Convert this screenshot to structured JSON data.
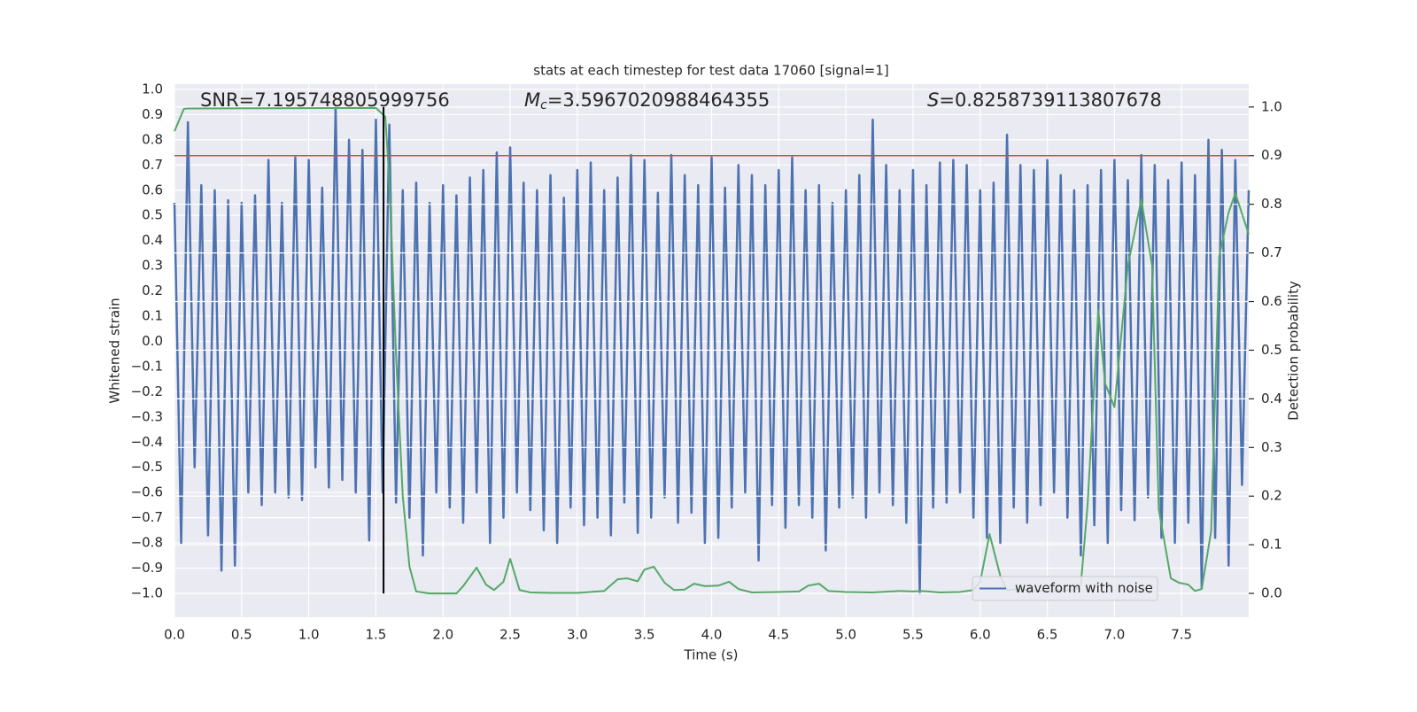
{
  "chart_data": {
    "type": "line",
    "title": "stats at each timestep for test data 17060 [signal=1]",
    "xlabel": "Time (s)",
    "ylabel": "Whitened strain",
    "y2label": "Detection probability",
    "xlim": [
      0,
      8
    ],
    "ylim": [
      -1.095,
      1.021
    ],
    "y2lim": [
      -0.049,
      1.047
    ],
    "xticks": [
      {
        "value": 0,
        "label": "0.0"
      },
      0.5,
      {
        "value": 1,
        "label": "1.0"
      },
      1.5,
      {
        "value": 2,
        "label": "2.0"
      },
      2.5,
      {
        "value": 3,
        "label": "3.0"
      },
      3.5,
      {
        "value": 4,
        "label": "4.0"
      },
      4.5,
      {
        "value": 5,
        "label": "5.0"
      },
      5.5,
      {
        "value": 6,
        "label": "6.0"
      },
      6.5,
      {
        "value": 7,
        "label": "7.0"
      },
      7.5
    ],
    "yticks": [
      {
        "value": -1,
        "label": "−1.0"
      },
      {
        "value": -0.9,
        "label": "−0.9"
      },
      {
        "value": -0.8,
        "label": "−0.8"
      },
      {
        "value": -0.7,
        "label": "−0.7"
      },
      {
        "value": -0.6,
        "label": "−0.6"
      },
      {
        "value": -0.5,
        "label": "−0.5"
      },
      {
        "value": -0.4,
        "label": "−0.4"
      },
      {
        "value": -0.3,
        "label": "−0.3"
      },
      {
        "value": -0.2,
        "label": "−0.2"
      },
      {
        "value": -0.1,
        "label": "−0.1"
      },
      {
        "value": 0,
        "label": "0.0"
      },
      0.1,
      0.2,
      0.3,
      0.4,
      0.5,
      0.6,
      0.7,
      0.8,
      0.9,
      {
        "value": 1,
        "label": "1.0"
      }
    ],
    "y2ticks": [
      {
        "value": 0,
        "label": "0.0"
      },
      0.1,
      0.2,
      0.3,
      0.4,
      0.5,
      0.6,
      0.7,
      0.8,
      0.9,
      {
        "value": 1,
        "label": "1.0"
      }
    ],
    "grid": true,
    "legend_loc": "lower right",
    "annotations": [
      {
        "text": "SNR=7.195748805999756"
      },
      {
        "symbol": "M",
        "subscript": "c",
        "text": "=3.5967020988464355"
      },
      {
        "symbol": "S",
        "text": "=0.8258739113807678"
      }
    ],
    "hline": {
      "value": 0.9,
      "axis": "y2",
      "color": "#c44e52"
    },
    "vline": {
      "x": 1.557,
      "ymin": 0,
      "ymax": 1,
      "axis": "y2",
      "color": "#000000"
    },
    "series": [
      {
        "name": "waveform with noise",
        "color": "#4c72b0",
        "axis": "y",
        "x": [
          0,
          0.05,
          0.1,
          0.15,
          0.2,
          0.25,
          0.3,
          0.35,
          0.4,
          0.45,
          0.5,
          0.55,
          0.6,
          0.65,
          0.7,
          0.75,
          0.8,
          0.85,
          0.9,
          0.95,
          1,
          1.05,
          1.1,
          1.15,
          1.2,
          1.25,
          1.3,
          1.35,
          1.4,
          1.45,
          1.5,
          1.55,
          1.6,
          1.65,
          1.7,
          1.75,
          1.8,
          1.85,
          1.9,
          1.95,
          2,
          2.05,
          2.1,
          2.15,
          2.2,
          2.25,
          2.3,
          2.35,
          2.4,
          2.45,
          2.5,
          2.55,
          2.6,
          2.65,
          2.7,
          2.75,
          2.8,
          2.85,
          2.9,
          2.95,
          3,
          3.05,
          3.1,
          3.15,
          3.2,
          3.25,
          3.3,
          3.35,
          3.4,
          3.45,
          3.5,
          3.55,
          3.6,
          3.65,
          3.7,
          3.75,
          3.8,
          3.85,
          3.9,
          3.95,
          4,
          4.05,
          4.1,
          4.15,
          4.2,
          4.25,
          4.3,
          4.35,
          4.4,
          4.45,
          4.5,
          4.55,
          4.6,
          4.65,
          4.7,
          4.75,
          4.8,
          4.85,
          4.9,
          4.95,
          5,
          5.05,
          5.1,
          5.15,
          5.2,
          5.25,
          5.3,
          5.35,
          5.4,
          5.45,
          5.5,
          5.55,
          5.6,
          5.65,
          5.7,
          5.75,
          5.8,
          5.85,
          5.9,
          5.95,
          6,
          6.05,
          6.1,
          6.15,
          6.2,
          6.25,
          6.3,
          6.35,
          6.4,
          6.45,
          6.5,
          6.55,
          6.6,
          6.65,
          6.7,
          6.75,
          6.8,
          6.85,
          6.9,
          6.95,
          7,
          7.05,
          7.1,
          7.15,
          7.2,
          7.25,
          7.3,
          7.35,
          7.4,
          7.45,
          7.5,
          7.55,
          7.6,
          7.65,
          7.7,
          7.75,
          7.8,
          7.85,
          7.9,
          7.95,
          8
        ],
        "values": [
          0.55,
          -0.8,
          0.87,
          -0.5,
          0.62,
          -0.77,
          0.6,
          -0.91,
          0.56,
          -0.89,
          0.55,
          -0.6,
          0.58,
          -0.65,
          0.72,
          -0.6,
          0.55,
          -0.62,
          0.73,
          -0.63,
          0.72,
          -0.5,
          0.61,
          -0.58,
          0.93,
          -0.55,
          0.8,
          -0.6,
          0.76,
          -0.79,
          0.88,
          -0.6,
          0.86,
          -0.64,
          0.6,
          -0.7,
          0.63,
          -0.85,
          0.55,
          -0.6,
          0.62,
          -0.66,
          0.58,
          -0.72,
          0.65,
          -0.6,
          0.68,
          -0.8,
          0.75,
          -0.7,
          0.77,
          -0.6,
          0.63,
          -0.67,
          0.6,
          -0.75,
          0.66,
          -0.8,
          0.57,
          -0.66,
          0.68,
          -0.73,
          0.71,
          -0.7,
          0.6,
          -0.77,
          0.65,
          -0.64,
          0.74,
          -0.76,
          0.72,
          -0.7,
          0.59,
          -0.62,
          0.74,
          -0.72,
          0.66,
          -0.68,
          0.62,
          -0.8,
          0.73,
          -0.78,
          0.61,
          -0.66,
          0.7,
          -0.6,
          0.66,
          -0.87,
          0.62,
          -0.65,
          0.68,
          -0.74,
          0.73,
          -0.65,
          0.6,
          -0.7,
          0.62,
          -0.83,
          0.55,
          -0.66,
          0.6,
          -0.62,
          0.66,
          -0.7,
          0.88,
          -0.6,
          0.7,
          -0.65,
          0.6,
          -0.72,
          0.68,
          -1.0,
          0.62,
          -0.66,
          0.71,
          -0.64,
          0.72,
          -0.6,
          0.7,
          -0.7,
          0.6,
          -0.78,
          0.63,
          -0.8,
          0.82,
          -0.66,
          0.7,
          -0.72,
          0.68,
          -0.65,
          0.72,
          -0.6,
          0.66,
          -0.7,
          0.6,
          -0.85,
          0.62,
          -0.73,
          0.68,
          -0.8,
          0.72,
          -0.67,
          0.64,
          -0.71,
          0.74,
          -0.62,
          0.7,
          -0.78,
          0.64,
          -0.8,
          0.71,
          -0.72,
          0.66,
          -0.98,
          0.8,
          -0.78,
          0.76,
          -0.89,
          0.72,
          -0.57,
          0.6
        ]
      },
      {
        "name": null,
        "color": "#55a868",
        "axis": "y2",
        "x": [
          0,
          0.07,
          0.1,
          1.5,
          1.57,
          1.6,
          1.65,
          1.7,
          1.75,
          1.8,
          1.9,
          2.1,
          2.15,
          2.25,
          2.32,
          2.38,
          2.45,
          2.5,
          2.57,
          2.65,
          2.8,
          3.0,
          3.2,
          3.3,
          3.37,
          3.45,
          3.5,
          3.57,
          3.65,
          3.72,
          3.8,
          3.87,
          3.95,
          4.05,
          4.13,
          4.2,
          4.3,
          4.5,
          4.65,
          4.72,
          4.8,
          4.87,
          5.0,
          5.2,
          5.4,
          5.5,
          5.57,
          5.7,
          5.85,
          5.95,
          6.0,
          6.07,
          6.15,
          6.2,
          6.3,
          6.45,
          6.7,
          6.75,
          6.8,
          6.88,
          6.93,
          7.0,
          7.1,
          7.2,
          7.28,
          7.33,
          7.42,
          7.48,
          7.55,
          7.6,
          7.65,
          7.72,
          7.78,
          7.85,
          7.9,
          8.0
        ],
        "values": [
          0.95,
          0.996,
          0.997,
          0.998,
          0.98,
          0.85,
          0.49,
          0.2,
          0.055,
          0.004,
          0.0,
          0.0,
          0.015,
          0.053,
          0.018,
          0.007,
          0.024,
          0.071,
          0.007,
          0.002,
          0.001,
          0.001,
          0.005,
          0.029,
          0.031,
          0.025,
          0.049,
          0.055,
          0.022,
          0.007,
          0.008,
          0.02,
          0.015,
          0.016,
          0.024,
          0.009,
          0.002,
          0.003,
          0.004,
          0.016,
          0.02,
          0.005,
          0.003,
          0.002,
          0.005,
          0.004,
          0.005,
          0.002,
          0.003,
          0.007,
          0.024,
          0.122,
          0.036,
          0.007,
          0.009,
          0.004,
          0.007,
          0.018,
          0.182,
          0.583,
          0.432,
          0.383,
          0.674,
          0.81,
          0.674,
          0.173,
          0.031,
          0.022,
          0.018,
          0.005,
          0.009,
          0.128,
          0.692,
          0.783,
          0.823,
          0.738
        ]
      }
    ]
  }
}
